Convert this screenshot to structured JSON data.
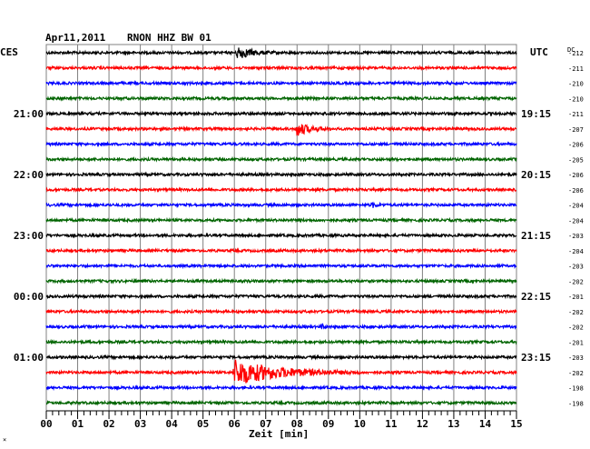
{
  "header": {
    "date": "Apr11,2011",
    "station": "RNON HHZ BW 01",
    "left_timezone": "CES",
    "right_timezone": "UTC",
    "offset_label": "DC"
  },
  "footer": {
    "xlabel": "Zeit [min]",
    "corner_mark": "×"
  },
  "chart_data": {
    "type": "line",
    "title": "Apr11,2011   RNON HHZ BW 01",
    "xlabel": "Zeit [min]",
    "xlim": [
      0,
      15
    ],
    "x_ticks": [
      "00",
      "01",
      "02",
      "03",
      "04",
      "05",
      "06",
      "07",
      "08",
      "09",
      "10",
      "11",
      "12",
      "13",
      "14",
      "15"
    ],
    "grid": true,
    "trace_colors": [
      "#000000",
      "#ff0000",
      "#0000ff",
      "#006400"
    ],
    "left_hour_labels": [
      {
        "trace": 4,
        "label": "21:00"
      },
      {
        "trace": 8,
        "label": "22:00"
      },
      {
        "trace": 12,
        "label": "23:00"
      },
      {
        "trace": 16,
        "label": "00:00"
      },
      {
        "trace": 20,
        "label": "01:00"
      }
    ],
    "right_hour_labels": [
      {
        "trace": 4,
        "label": "19:15"
      },
      {
        "trace": 8,
        "label": "20:15"
      },
      {
        "trace": 12,
        "label": "21:15"
      },
      {
        "trace": 16,
        "label": "22:15"
      },
      {
        "trace": 20,
        "label": "23:15"
      }
    ],
    "dc_offsets": [
      "-212",
      "-211",
      "-210",
      "-210",
      "-211",
      "-207",
      "-206",
      "-205",
      "-206",
      "-206",
      "-204",
      "-204",
      "-203",
      "-204",
      "-203",
      "-202",
      "-201",
      "-202",
      "-202",
      "-201",
      "-203",
      "-202",
      "-198",
      "-198"
    ],
    "events": [
      {
        "trace": 0,
        "minute": 6.1,
        "amplitude": 7,
        "duration_min": 1.2
      },
      {
        "trace": 5,
        "minute": 8.0,
        "amplitude": 8,
        "duration_min": 1.0
      },
      {
        "trace": 10,
        "minute": 10.4,
        "amplitude": 2.5,
        "duration_min": 0.4
      },
      {
        "trace": 18,
        "minute": 8.8,
        "amplitude": 2.5,
        "duration_min": 0.2
      },
      {
        "trace": 21,
        "minute": 6.0,
        "amplitude": 14,
        "duration_min": 4.0
      }
    ]
  }
}
